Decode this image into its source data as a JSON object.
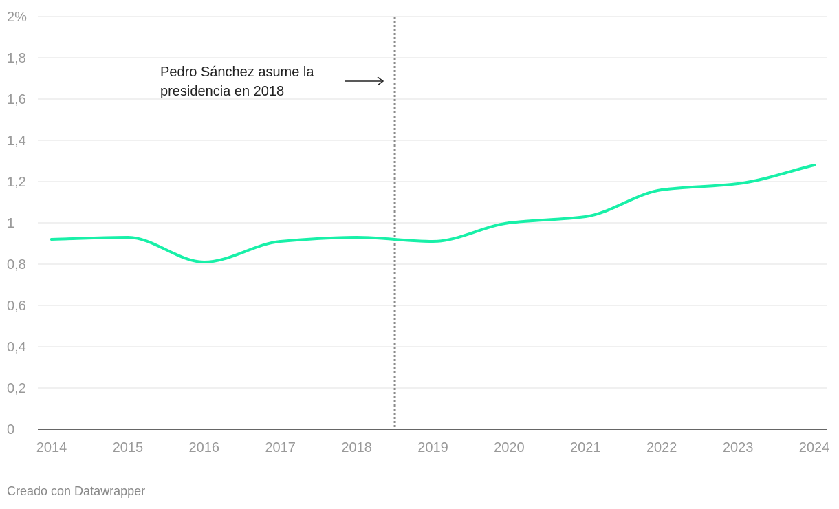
{
  "chart_data": {
    "type": "line",
    "x": [
      "2014",
      "2015",
      "2016",
      "2017",
      "2018",
      "2019",
      "2020",
      "2021",
      "2022",
      "2023",
      "2024"
    ],
    "series": [
      {
        "values": [
          0.92,
          0.93,
          0.81,
          0.91,
          0.93,
          0.91,
          1.0,
          1.03,
          1.16,
          1.19,
          1.28
        ],
        "color": "#18f0a8"
      }
    ],
    "ylim": [
      0,
      2
    ],
    "y_ticks": [
      "0",
      "0,2",
      "0,4",
      "0,6",
      "0,8",
      "1",
      "1,2",
      "1,4",
      "1,6",
      "1,8",
      "2%"
    ],
    "x_ticks": [
      "2014",
      "2015",
      "2016",
      "2017",
      "2018",
      "2019",
      "2020",
      "2021",
      "2022",
      "2023",
      "2024"
    ],
    "grid": true,
    "annotation": {
      "lines": [
        "Pedro Sánchez asume la",
        "presidencia en 2018"
      ],
      "x_position": 2018.5
    }
  },
  "footer": "Creado con Datawrapper"
}
